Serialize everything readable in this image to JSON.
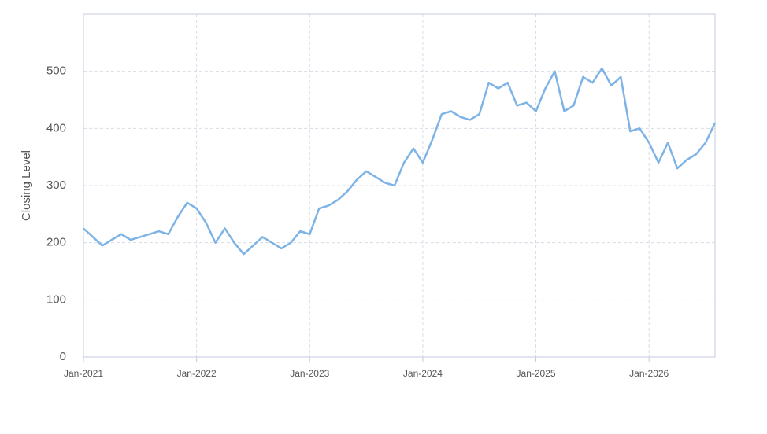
{
  "chart_data": {
    "type": "line",
    "y_label": "Closing Level",
    "x": [
      "2021-01",
      "2021-02",
      "2021-03",
      "2021-04",
      "2021-05",
      "2021-06",
      "2021-07",
      "2021-08",
      "2021-09",
      "2021-10",
      "2021-11",
      "2021-12",
      "2022-01",
      "2022-02",
      "2022-03",
      "2022-04",
      "2022-05",
      "2022-06",
      "2022-07",
      "2022-08",
      "2022-09",
      "2022-10",
      "2022-11",
      "2022-12",
      "2023-01",
      "2023-02",
      "2023-03",
      "2023-04",
      "2023-05",
      "2023-06",
      "2023-07",
      "2023-08",
      "2023-09",
      "2023-10",
      "2023-11",
      "2023-12",
      "2024-01",
      "2024-02",
      "2024-03",
      "2024-04",
      "2024-05",
      "2024-06",
      "2024-07",
      "2024-08",
      "2024-09",
      "2024-10",
      "2024-11",
      "2024-12",
      "2025-01",
      "2025-02",
      "2025-03",
      "2025-04",
      "2025-05",
      "2025-06",
      "2025-07",
      "2025-08",
      "2025-09",
      "2025-10",
      "2025-11",
      "2025-12",
      "2026-01",
      "2026-02",
      "2026-03",
      "2026-04",
      "2026-05",
      "2026-06",
      "2026-07",
      "2026-08"
    ],
    "values": [
      225,
      210,
      195,
      205,
      215,
      205,
      210,
      215,
      220,
      215,
      245,
      270,
      260,
      235,
      200,
      225,
      200,
      180,
      195,
      210,
      200,
      190,
      200,
      220,
      215,
      260,
      265,
      275,
      290,
      310,
      325,
      315,
      305,
      300,
      340,
      365,
      340,
      380,
      425,
      430,
      420,
      415,
      425,
      480,
      470,
      480,
      440,
      445,
      430,
      470,
      500,
      430,
      440,
      490,
      480,
      505,
      475,
      490,
      395,
      400,
      375,
      340,
      375,
      330,
      345,
      355,
      375,
      410
    ],
    "color": "#7eb3e6",
    "xlim": [
      "2021-01",
      "2026-08"
    ],
    "xticks": [
      {
        "value": "2021-01",
        "label": "Jan-2021"
      },
      {
        "value": "2022-01",
        "label": "Jan-2022"
      },
      {
        "value": "2023-01",
        "label": "Jan-2023"
      },
      {
        "value": "2024-01",
        "label": "Jan-2024"
      },
      {
        "value": "2025-01",
        "label": "Jan-2025"
      },
      {
        "value": "2026-01",
        "label": "Jan-2026"
      }
    ],
    "ylim": [
      0,
      600
    ],
    "yticks": [
      0,
      100,
      200,
      300,
      400,
      500
    ],
    "grid": true
  }
}
